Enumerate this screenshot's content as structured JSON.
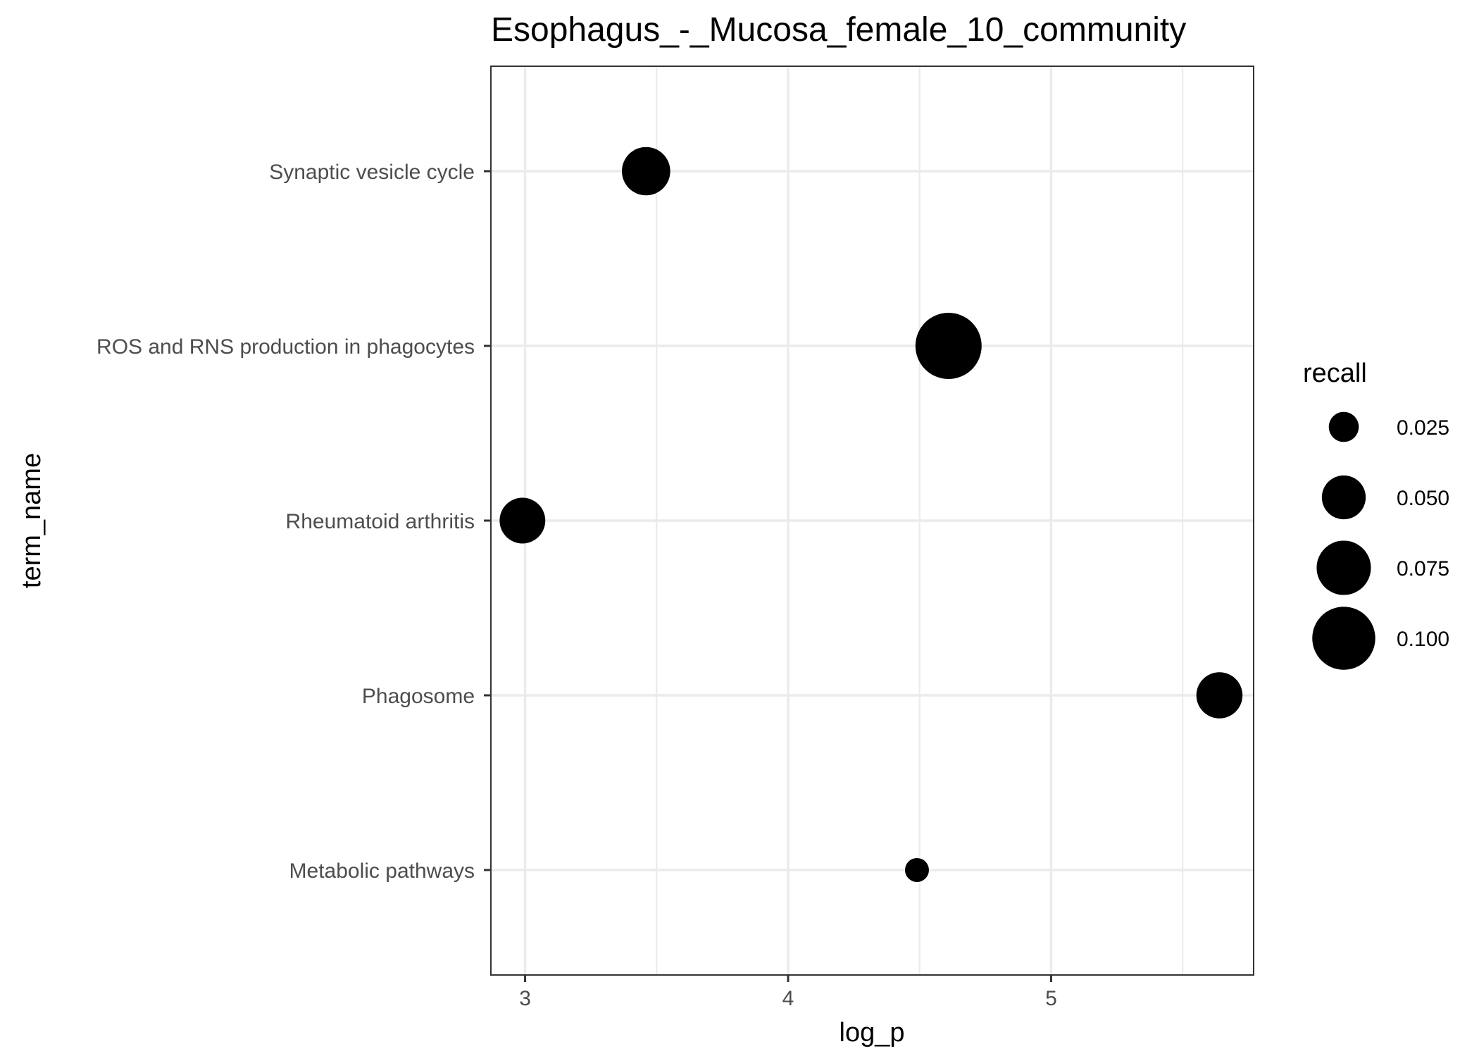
{
  "chart_data": {
    "type": "scatter",
    "title": "Esophagus_-_Mucosa_female_10_community",
    "xlabel": "log_p",
    "ylabel": "term_name",
    "xlim": [
      2.87,
      5.77
    ],
    "x_ticks": [
      3,
      4,
      5
    ],
    "x_tick_labels": [
      "3",
      "4",
      "5"
    ],
    "categories": [
      "Synaptic vesicle cycle",
      "ROS and RNS production in phagocytes",
      "Rheumatoid arthritis",
      "Phagosome",
      "Metabolic pathways"
    ],
    "points": [
      {
        "term_name": "Synaptic vesicle cycle",
        "log_p": 3.46,
        "recall": 0.06
      },
      {
        "term_name": "ROS and RNS production in phagocytes",
        "log_p": 4.61,
        "recall": 0.11
      },
      {
        "term_name": "Rheumatoid arthritis",
        "log_p": 2.99,
        "recall": 0.054
      },
      {
        "term_name": "Phagosome",
        "log_p": 5.64,
        "recall": 0.055
      },
      {
        "term_name": "Metabolic pathways",
        "log_p": 4.49,
        "recall": 0.017
      }
    ],
    "size_legend": {
      "title": "recall",
      "values": [
        0.025,
        0.05,
        0.075,
        0.1
      ],
      "labels": [
        "0.025",
        "0.050",
        "0.075",
        "0.100"
      ]
    },
    "grid": true,
    "legend_position": "right",
    "point_color": "#000000"
  }
}
